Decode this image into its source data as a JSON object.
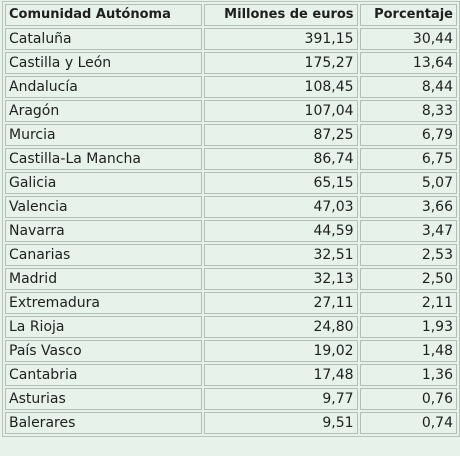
{
  "table": {
    "headers": [
      "Comunidad Autónoma",
      "Millones de euros",
      "Porcentaje"
    ],
    "rows": [
      [
        "Cataluña",
        "391,15",
        "30,44"
      ],
      [
        "Castilla y León",
        "175,27",
        "13,64"
      ],
      [
        "Andalucía",
        "108,45",
        "8,44"
      ],
      [
        "Aragón",
        "107,04",
        "8,33"
      ],
      [
        "Murcia",
        "87,25",
        "6,79"
      ],
      [
        "Castilla-La Mancha",
        "86,74",
        "6,75"
      ],
      [
        "Galicia",
        "65,15",
        "5,07"
      ],
      [
        "Valencia",
        "47,03",
        "3,66"
      ],
      [
        "Navarra",
        "44,59",
        "3,47"
      ],
      [
        "Canarias",
        "32,51",
        "2,53"
      ],
      [
        "Madrid",
        "32,13",
        "2,50"
      ],
      [
        "Extremadura",
        "27,11",
        "2,11"
      ],
      [
        "La Rioja",
        "24,80",
        "1,93"
      ],
      [
        "País Vasco",
        "19,02",
        "1,48"
      ],
      [
        "Cantabria",
        "17,48",
        "1,36"
      ],
      [
        "Asturias",
        "9,77",
        "0,76"
      ],
      [
        "Balerares",
        "9,51",
        "0,74"
      ]
    ]
  },
  "colors": {
    "background": "#e6f2ea",
    "border": "#b3bfb6",
    "text": "#1f1f1f"
  }
}
